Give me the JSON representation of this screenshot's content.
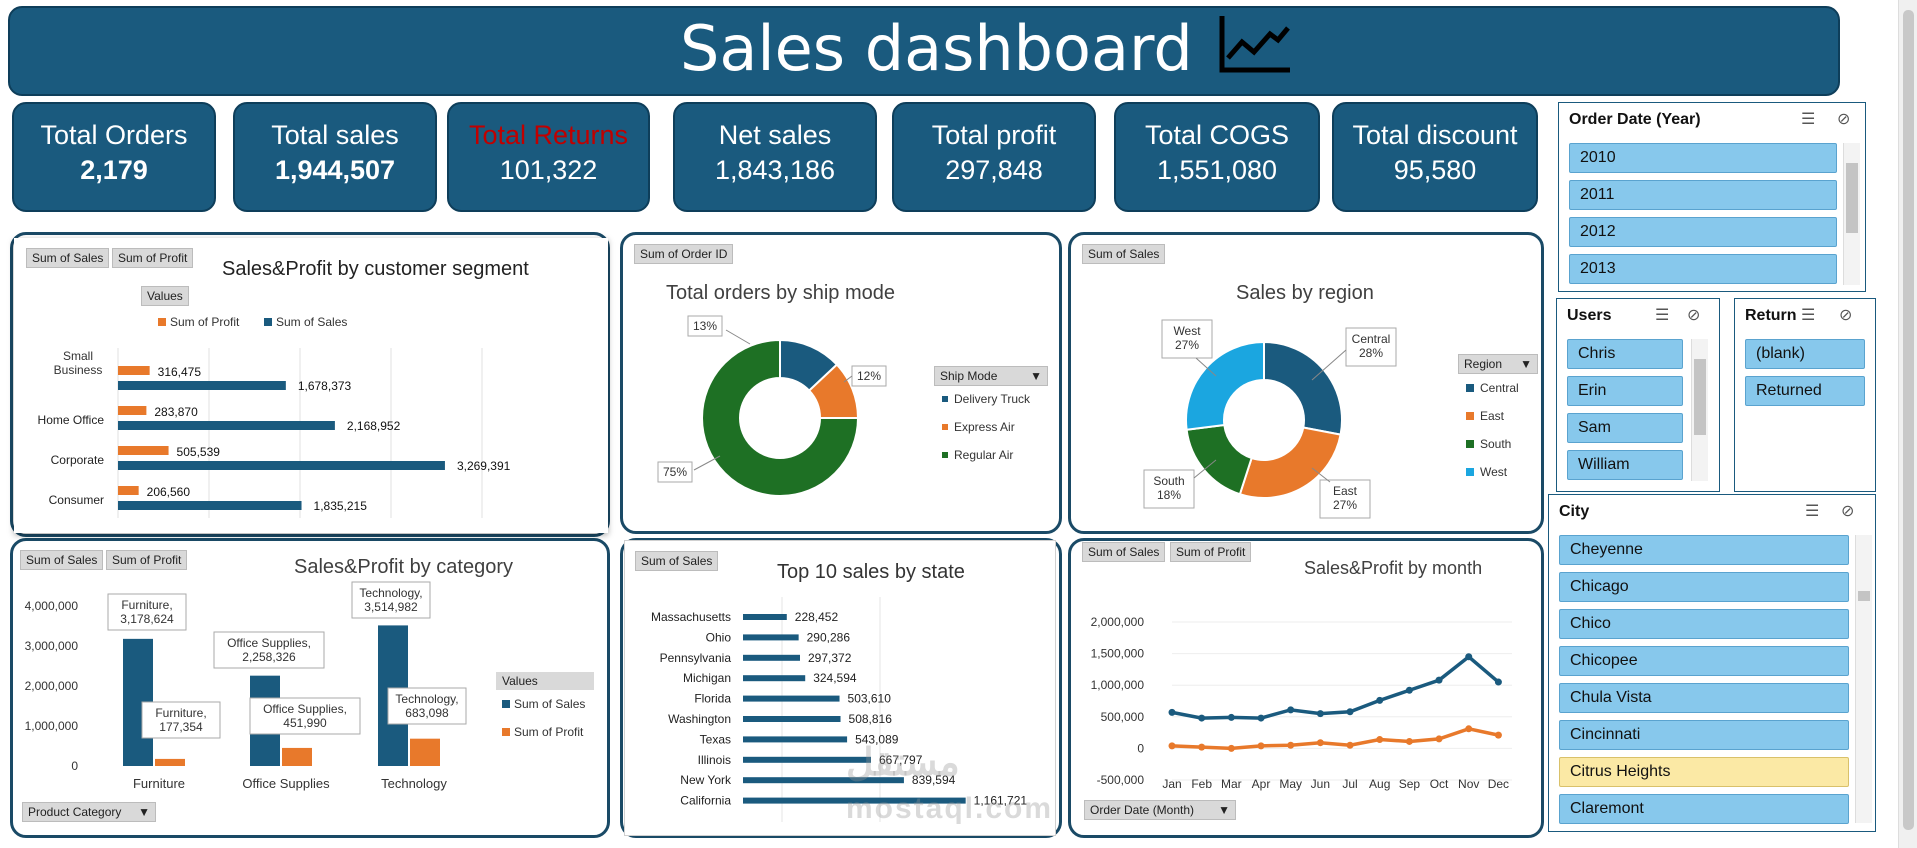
{
  "header": {
    "title": "Sales dashboard",
    "icon": "line-chart-icon"
  },
  "kpis": [
    {
      "label": "Total Orders",
      "value": "2,179"
    },
    {
      "label": "Total sales",
      "value": "1,944,507"
    },
    {
      "label": "Total Returns",
      "value": "101,322",
      "label_color": "#c00000"
    },
    {
      "label": "Net sales",
      "value": "1,843,186"
    },
    {
      "label": "Total profit",
      "value": "297,848"
    },
    {
      "label": "Total COGS",
      "value": "1,551,080"
    },
    {
      "label": "Total discount",
      "value": "95,580"
    }
  ],
  "segment_panel": {
    "buttons": [
      "Sum of Sales",
      "Sum of Profit"
    ],
    "values_btn": "Values"
  },
  "ship_panel": {
    "button": "Sum of Order ID",
    "legend_title": "Ship Mode"
  },
  "region_panel": {
    "button": "Sum of Sales",
    "legend_title": "Region"
  },
  "category_panel": {
    "buttons": [
      "Sum of Sales",
      "Sum of Profit"
    ],
    "legend_title": "Values",
    "filter_btn": "Product Category"
  },
  "state_panel": {
    "button": "Sum of Sales"
  },
  "month_panel": {
    "buttons": [
      "Sum of Sales",
      "Sum of Profit"
    ],
    "filter_btn": "Order Date (Month)"
  },
  "slicers": {
    "year": {
      "title": "Order Date (Year)",
      "items": [
        "2010",
        "2011",
        "2012",
        "2013"
      ]
    },
    "users": {
      "title": "Users",
      "items": [
        "Chris",
        "Erin",
        "Sam",
        "William"
      ]
    },
    "return": {
      "title": "Return",
      "items": [
        "(blank)",
        "Returned"
      ]
    },
    "city": {
      "title": "City",
      "items": [
        "Cheyenne",
        "Chicago",
        "Chico",
        "Chicopee",
        "Chula Vista",
        "Cincinnati",
        "Citrus Heights",
        "Claremont"
      ],
      "highlighted": "Citrus Heights"
    }
  },
  "watermark": {
    "text": "mostaql.com"
  },
  "colors": {
    "blue": "#1a5a7e",
    "orange": "#e8792b",
    "green": "#1e7024",
    "lightblue": "#1ba6e0"
  },
  "chart_data": [
    {
      "type": "bar",
      "title": "Sales&Profit by customer segment",
      "categories": [
        "Consumer",
        "Corporate",
        "Home Office",
        "Small Business"
      ],
      "series": [
        {
          "name": "Sum of Profit",
          "values": [
            206560,
            505539,
            283870,
            316475
          ]
        },
        {
          "name": "Sum of Sales",
          "values": [
            1835215,
            3269391,
            2168952,
            1678373
          ]
        }
      ],
      "data_labels": {
        "Sum of Profit": [
          "206,560",
          "505,539",
          "283,870",
          "316,475"
        ],
        "Sum of Sales": [
          "1,835,215",
          "3,269,391",
          "2,168,952",
          "1,678,373"
        ]
      },
      "legend": "top"
    },
    {
      "type": "pie",
      "title": "Total orders by ship mode",
      "categories": [
        "Delivery Truck",
        "Express Air",
        "Regular Air"
      ],
      "values": [
        13,
        12,
        75
      ],
      "labels": [
        "13%",
        "12%",
        "75%"
      ],
      "legend": "right"
    },
    {
      "type": "pie",
      "title": "Sales by region",
      "categories": [
        "Central",
        "East",
        "South",
        "West"
      ],
      "values": [
        28,
        27,
        18,
        27
      ],
      "labels": [
        "Central\n28%",
        "East\n27%",
        "South\n18%",
        "West\n27%"
      ],
      "legend": "right"
    },
    {
      "type": "bar",
      "title": "Sales&Profit by category",
      "categories": [
        "Furniture",
        "Office Supplies",
        "Technology"
      ],
      "series": [
        {
          "name": "Sum of Sales",
          "values": [
            3178624,
            2258326,
            3514982
          ]
        },
        {
          "name": "Sum of Profit",
          "values": [
            177354,
            451990,
            683098
          ]
        }
      ],
      "callouts": {
        "Sum of Sales": [
          "Furniture,\n3,178,624",
          "Office Supplies,\n2,258,326",
          "Technology,\n3,514,982"
        ],
        "Sum of Profit": [
          "Furniture,\n177,354",
          "Office Supplies,\n451,990",
          "Technology,\n683,098"
        ]
      },
      "yticks": [
        "0",
        "1,000,000",
        "2,000,000",
        "3,000,000",
        "4,000,000"
      ],
      "ylim": [
        0,
        4000000
      ],
      "legend": "right"
    },
    {
      "type": "bar",
      "title": "Top 10 sales by state",
      "categories": [
        "Massachusetts",
        "Ohio",
        "Pennsylvania",
        "Michigan",
        "Florida",
        "Washington",
        "Texas",
        "Illinois",
        "New York",
        "California"
      ],
      "values": [
        228452,
        290286,
        297372,
        324594,
        503610,
        508816,
        543089,
        667797,
        839594,
        1161721
      ],
      "data_labels": [
        "228,452",
        "290,286",
        "297,372",
        "324,594",
        "503,610",
        "508,816",
        "543,089",
        "667,797",
        "839,594",
        "1,161,721"
      ]
    },
    {
      "type": "line",
      "title": "Sales&Profit by month",
      "x": [
        "Jan",
        "Feb",
        "Mar",
        "Apr",
        "May",
        "Jun",
        "Jul",
        "Aug",
        "Sep",
        "Oct",
        "Nov",
        "Dec"
      ],
      "series": [
        {
          "name": "Sum of Sales",
          "values": [
            570000,
            480000,
            490000,
            480000,
            610000,
            550000,
            580000,
            760000,
            920000,
            1080000,
            1450000,
            1050000
          ]
        },
        {
          "name": "Sum of Profit",
          "values": [
            40000,
            20000,
            0,
            40000,
            50000,
            90000,
            50000,
            140000,
            110000,
            150000,
            310000,
            210000
          ]
        }
      ],
      "yticks": [
        "-500,000",
        "0",
        "500,000",
        "1,000,000",
        "1,500,000",
        "2,000,000"
      ],
      "ylim": [
        -500000,
        2000000
      ]
    }
  ]
}
